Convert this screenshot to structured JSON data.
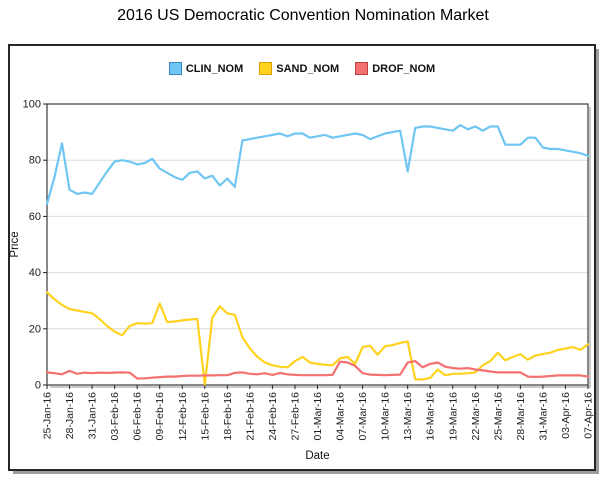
{
  "title": "2016 US Democratic Convention Nomination Market",
  "chart_data": {
    "type": "line",
    "title": "2016 US Democratic Convention Nomination Market",
    "xlabel": "Date",
    "ylabel": "Price",
    "ylim": [
      0,
      100
    ],
    "y_ticks": [
      0,
      20,
      40,
      60,
      80,
      100
    ],
    "grid": "horizontal",
    "legend_position": "top-center",
    "x_tick_labels": [
      "25-Jan-16",
      "28-Jan-16",
      "31-Jan-16",
      "03-Feb-16",
      "06-Feb-16",
      "09-Feb-16",
      "12-Feb-16",
      "15-Feb-16",
      "18-Feb-16",
      "21-Feb-16",
      "24-Feb-16",
      "27-Feb-16",
      "01-Mar-16",
      "04-Mar-16",
      "07-Mar-16",
      "10-Mar-16",
      "13-Mar-16",
      "16-Mar-16",
      "19-Mar-16",
      "22-Mar-16",
      "25-Mar-16",
      "28-Mar-16",
      "31-Mar-16",
      "03-Apr-16",
      "07-Apr-16"
    ],
    "x_is_daily_points": true,
    "series": [
      {
        "name": "CLIN_NOM",
        "color": "#6FC6F3",
        "swatch_border": "#3787C0",
        "values": [
          64.5,
          74,
          86,
          69.5,
          68,
          68.5,
          68,
          72,
          76,
          79.5,
          80,
          79.5,
          78.5,
          79,
          80.5,
          77,
          75.5,
          74,
          73,
          75.5,
          76,
          73.5,
          74.5,
          71,
          73.5,
          70.5,
          87,
          87.5,
          88,
          88.5,
          89,
          89.5,
          88.5,
          89.5,
          89.5,
          88,
          88.5,
          89,
          88,
          88.5,
          89,
          89.5,
          89,
          87.5,
          88.5,
          89.5,
          90,
          90.5,
          76,
          91.5,
          92,
          92,
          91.5,
          91,
          90.5,
          92.5,
          91,
          92,
          90.5,
          92,
          92,
          85.5,
          85.5,
          85.5,
          88,
          88,
          84.5,
          84,
          84,
          83.5,
          83,
          82.5,
          81.5
        ]
      },
      {
        "name": "SAND_NOM",
        "color": "#FFD21E",
        "swatch_border": "#DD9F00",
        "values": [
          33,
          30.5,
          28.5,
          27,
          26.5,
          26,
          25.5,
          23.5,
          21,
          19,
          17.7,
          21,
          22,
          21.8,
          22,
          29,
          22.4,
          22.6,
          23,
          23.3,
          23.5,
          0.2,
          24,
          28,
          25.5,
          25,
          17,
          13,
          10,
          8,
          7,
          6.5,
          6.3,
          8.5,
          10,
          8,
          7.5,
          7.2,
          7,
          9.5,
          10,
          7.5,
          13.5,
          14,
          10.8,
          13.8,
          14.2,
          15,
          15.5,
          2,
          2,
          2.5,
          5.5,
          3.5,
          4,
          4,
          4.2,
          4.5,
          7,
          8.5,
          11.5,
          8.8,
          10,
          11,
          9,
          10.5,
          11,
          11.5,
          12.5,
          13,
          13.5,
          12.5,
          14.5
        ]
      },
      {
        "name": "DROF_NOM",
        "color": "#F4716F",
        "swatch_border": "#BF4040",
        "values": [
          4.5,
          4.2,
          3.8,
          5,
          4,
          4.4,
          4.2,
          4.4,
          4.3,
          4.4,
          4.5,
          4.4,
          2.3,
          2.4,
          2.6,
          2.8,
          3,
          3,
          3.2,
          3.3,
          3.3,
          3.4,
          3.4,
          3.5,
          3.5,
          4.3,
          4.5,
          4,
          3.8,
          4.2,
          3.6,
          4.3,
          3.8,
          3.6,
          3.5,
          3.5,
          3.5,
          3.5,
          3.6,
          8.3,
          8,
          6.8,
          4.2,
          3.7,
          3.6,
          3.5,
          3.6,
          3.7,
          8,
          8.5,
          6.3,
          7.5,
          8,
          6.5,
          6,
          5.8,
          6,
          5.5,
          5.2,
          4.8,
          4.5,
          4.5,
          4.5,
          4.5,
          3,
          2.9,
          3,
          3.2,
          3.4,
          3.4,
          3.4,
          3.4,
          3
        ]
      }
    ],
    "style": {
      "grid_color": "#DCDCDC",
      "frame_color": "#3A3A3A",
      "frame_shadow_color": "#C9C9C9",
      "tick_text_color": "#1d1d1d",
      "line_width": 2.2
    }
  }
}
